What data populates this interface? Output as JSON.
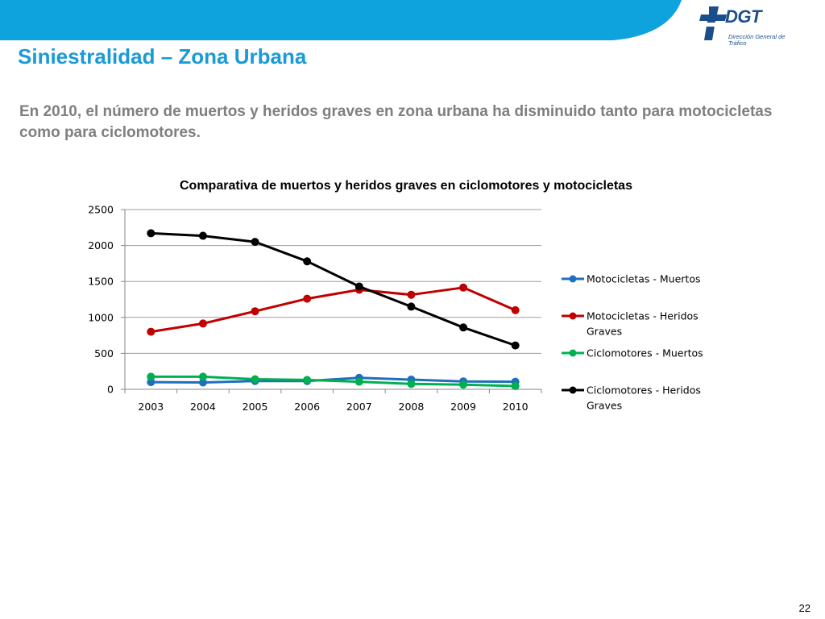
{
  "page": {
    "title": "Siniestralidad – Zona Urbana",
    "subtitle": "En 2010, el número de muertos y heridos graves en zona urbana ha disminuido tanto para motocicletas como para ciclomotores.",
    "slide_number": "22"
  },
  "logo": {
    "text": "DGT",
    "subtext": "Dirección General de Tráfico",
    "color": "#1a4f8b"
  },
  "colors": {
    "banner": "#0ea3dc",
    "title": "#1a9ad6",
    "subtitle": "#7f7f7f"
  },
  "chart_data": {
    "type": "line",
    "title": "Comparativa de muertos y heridos graves en ciclomotores y motocicletas",
    "xlabel": "",
    "ylabel": "",
    "x": [
      "2003",
      "2004",
      "2005",
      "2006",
      "2007",
      "2008",
      "2009",
      "2010"
    ],
    "ylim": [
      0,
      2500
    ],
    "yticks": [
      0,
      500,
      1000,
      1500,
      2000,
      2500
    ],
    "grid": true,
    "legend_position": "right",
    "series": [
      {
        "name": "Motocicletas - Muertos",
        "color": "#1f6fbd",
        "values": [
          100,
          95,
          115,
          115,
          160,
          135,
          110,
          105
        ]
      },
      {
        "name": "Motocicletas - Heridos Graves",
        "color": "#c00000",
        "values": [
          800,
          915,
          1085,
          1260,
          1385,
          1315,
          1415,
          1100
        ]
      },
      {
        "name": "Ciclomotores - Muertos",
        "color": "#00b050",
        "values": [
          175,
          175,
          140,
          130,
          105,
          75,
          65,
          45
        ]
      },
      {
        "name": "Ciclomotores - Heridos Graves",
        "color": "#000000",
        "values": [
          2170,
          2135,
          2050,
          1780,
          1430,
          1150,
          860,
          610
        ]
      }
    ]
  }
}
